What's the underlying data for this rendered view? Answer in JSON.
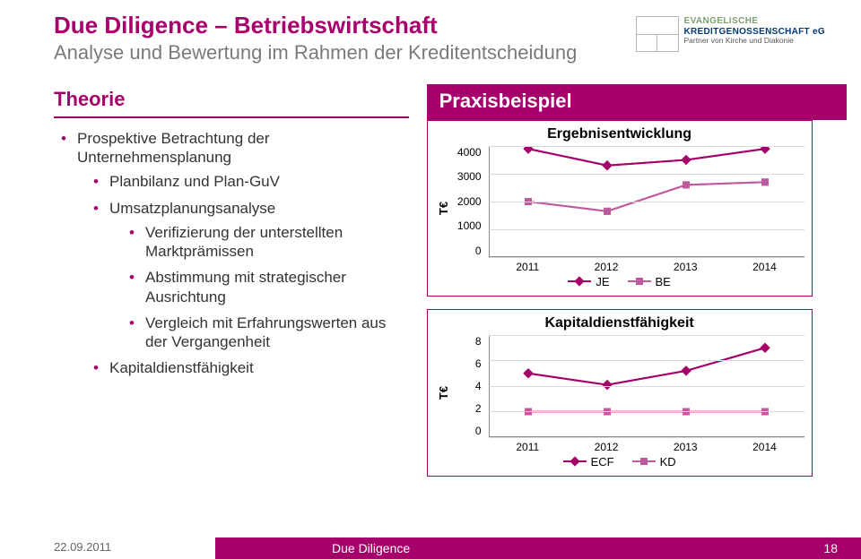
{
  "colors": {
    "magenta": "#a6006b",
    "grey_text": "#7a7a7a",
    "grid": "#d9d9d9",
    "axis": "#888888",
    "series2": "#c05a9e",
    "bg": "#ffffff"
  },
  "header": {
    "title": "Due Diligence – Betriebswirtschaft",
    "subtitle": "Analyse und Bewertung im Rahmen der Kreditentscheidung"
  },
  "logo": {
    "line1": "EVANGELISCHE",
    "line2": "KREDITGENOSSENSCHAFT eG",
    "line3": "Partner von Kirche und Diakonie"
  },
  "left": {
    "heading": "Theorie",
    "bullets": [
      {
        "text": "Prospektive Betrachtung der Unternehmensplanung",
        "children": [
          {
            "text": "Planbilanz und Plan-GuV"
          },
          {
            "text": "Umsatzplanungsanalyse",
            "children": [
              {
                "text": "Verifizierung der unterstellten Marktprämissen"
              },
              {
                "text": "Abstimmung mit strategischer Ausrichtung"
              },
              {
                "text": "Vergleich mit Erfahrungswerten aus der Vergangenheit"
              }
            ]
          },
          {
            "text": "Kapitaldienstfähigkeit"
          }
        ]
      }
    ]
  },
  "right": {
    "heading": "Praxisbeispiel",
    "chart1": {
      "type": "line",
      "title": "Ergebnisentwicklung",
      "ylabel": "T€",
      "ylim": [
        0,
        4000
      ],
      "yticks": [
        0,
        1000,
        2000,
        3000,
        4000
      ],
      "x": [
        "2011",
        "2012",
        "2013",
        "2014"
      ],
      "series": [
        {
          "name": "JE",
          "color": "#a6006b",
          "marker": "diamond",
          "values": [
            3900,
            3300,
            3500,
            3900
          ]
        },
        {
          "name": "BE",
          "color": "#c05a9e",
          "marker": "square",
          "values": [
            2000,
            1650,
            2600,
            2700
          ]
        }
      ],
      "legend": [
        "JE",
        "BE"
      ]
    },
    "chart2": {
      "type": "line",
      "title": "Kapitaldienstfähigkeit",
      "ylabel": "T€",
      "ylim": [
        0,
        8
      ],
      "yticks": [
        0,
        2,
        4,
        6,
        8
      ],
      "x": [
        "2011",
        "2012",
        "2013",
        "2014"
      ],
      "series": [
        {
          "name": "ECF",
          "color": "#a6006b",
          "marker": "diamond",
          "values": [
            5.0,
            4.1,
            5.2,
            7.0
          ]
        },
        {
          "name": "KD",
          "color": "#c05a9e",
          "marker": "square",
          "values": [
            2.0,
            2.0,
            2.0,
            2.0
          ]
        }
      ],
      "legend": [
        "ECF",
        "KD"
      ]
    }
  },
  "footer": {
    "date": "22.09.2011",
    "center": "Due Diligence",
    "page": "18"
  }
}
